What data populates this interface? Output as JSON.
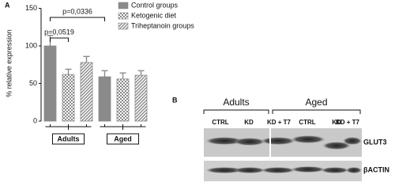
{
  "panel_labels": [
    "A",
    "B"
  ],
  "chart_data": {
    "type": "bar",
    "y_label": "% relative expression",
    "categories": [
      "Adults",
      "Aged"
    ],
    "series": [
      {
        "name": "Control groups",
        "color": "#8a8a8a",
        "pattern": "solid",
        "values": [
          100,
          59
        ],
        "errors": [
          14,
          8
        ]
      },
      {
        "name": "Ketogenic diet",
        "color": "#8a8a8a",
        "pattern": "checker",
        "values": [
          62,
          56
        ],
        "errors": [
          7,
          8
        ]
      },
      {
        "name": "Triheptanoin groups",
        "color": "#8a8a8a",
        "pattern": "diagonal",
        "values": [
          78,
          61
        ],
        "errors": [
          8,
          6
        ]
      }
    ],
    "ylim": [
      0,
      150
    ],
    "yticks": [
      0,
      50,
      100,
      150
    ],
    "annotations": [
      "p=0,0336",
      "p=0,0519"
    ]
  },
  "blot": {
    "groups": [
      "Adults",
      "Aged"
    ],
    "lanes": [
      "CTRL",
      "KD",
      "KD + T7",
      "CTRL",
      "KD",
      "KD + T7"
    ],
    "rows": [
      "GLUT3",
      "βACTIN"
    ]
  }
}
